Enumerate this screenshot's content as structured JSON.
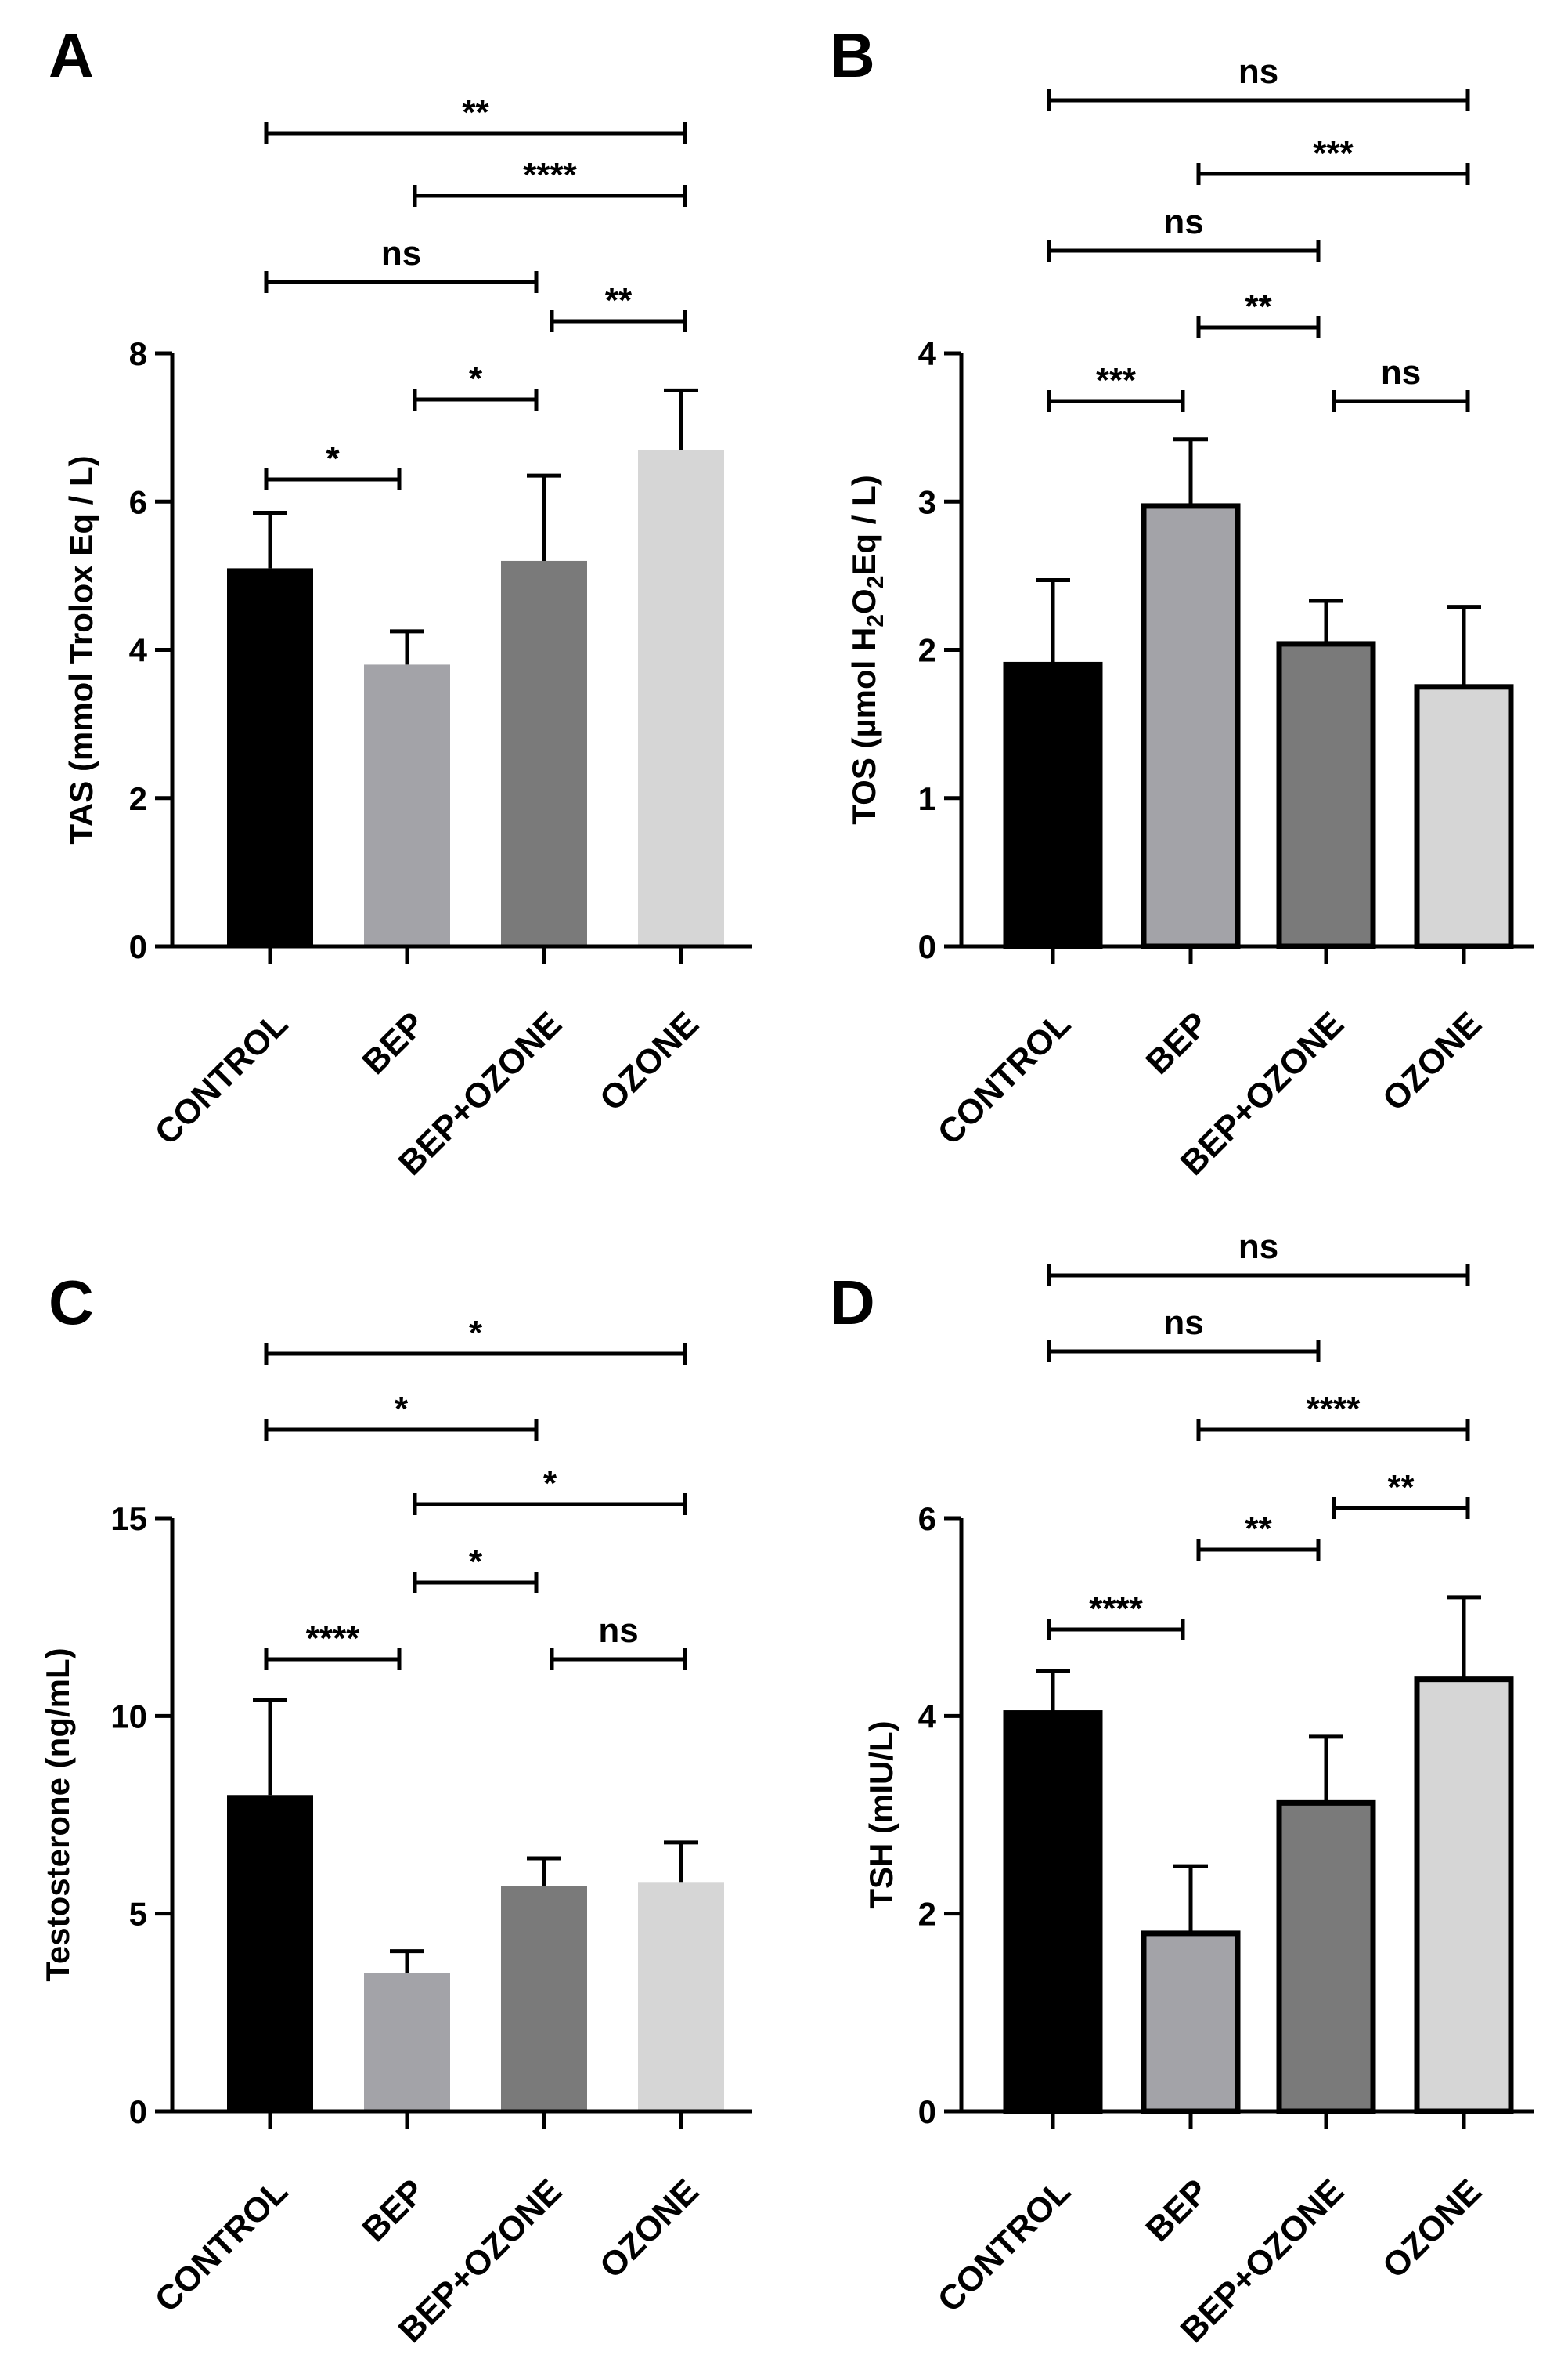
{
  "chart_data": [
    {
      "panel": "A",
      "type": "bar",
      "categories": [
        "CONTROL",
        "BEP",
        "BEP+OZONE",
        "OZONE"
      ],
      "values": [
        5.1,
        3.8,
        5.2,
        6.7
      ],
      "errors": [
        0.75,
        0.45,
        1.15,
        0.8
      ],
      "ylabel": "TAS (mmol Trolox Eq / L)",
      "ylim": [
        0,
        8
      ],
      "yticks": [
        "0",
        "2",
        "4",
        "6",
        "8"
      ],
      "colors": [
        "#000000",
        "#a3a3a8",
        "#7a7a7a",
        "#d6d6d6"
      ],
      "bar_outline": false,
      "comparisons": [
        {
          "from": 0,
          "to": 1,
          "label": "*"
        },
        {
          "from": 1,
          "to": 2,
          "label": "*"
        },
        {
          "from": 2,
          "to": 3,
          "label": "**"
        },
        {
          "from": 0,
          "to": 2,
          "label": "ns"
        },
        {
          "from": 1,
          "to": 3,
          "label": "****"
        },
        {
          "from": 0,
          "to": 3,
          "label": "**"
        }
      ]
    },
    {
      "panel": "B",
      "type": "bar",
      "categories": [
        "CONTROL",
        "BEP",
        "BEP+OZONE",
        "OZONE"
      ],
      "values": [
        1.9,
        2.97,
        2.04,
        1.75
      ],
      "errors": [
        0.57,
        0.45,
        0.29,
        0.54
      ],
      "ylabel": "TOS (µmol H2O2Eq / L)",
      "ylim": [
        0,
        4
      ],
      "yticks": [
        "0",
        "1",
        "2",
        "3",
        "4"
      ],
      "colors": [
        "#000000",
        "#a3a3a8",
        "#7a7a7a",
        "#d6d6d6"
      ],
      "bar_outline": true,
      "comparisons": [
        {
          "from": 0,
          "to": 1,
          "label": "***"
        },
        {
          "from": 2,
          "to": 3,
          "label": "ns"
        },
        {
          "from": 1,
          "to": 2,
          "label": "**"
        },
        {
          "from": 0,
          "to": 2,
          "label": "ns"
        },
        {
          "from": 1,
          "to": 3,
          "label": "***"
        },
        {
          "from": 0,
          "to": 3,
          "label": "ns"
        }
      ]
    },
    {
      "panel": "C",
      "type": "bar",
      "categories": [
        "CONTROL",
        "BEP",
        "BEP+OZONE",
        "OZONE"
      ],
      "values": [
        8.0,
        3.5,
        5.7,
        5.8
      ],
      "errors": [
        2.4,
        0.55,
        0.7,
        1.0
      ],
      "ylabel": "Testosterone (ng/mL)",
      "ylim": [
        0,
        15
      ],
      "yticks": [
        "0",
        "5",
        "10",
        "15"
      ],
      "colors": [
        "#000000",
        "#a3a3a8",
        "#7a7a7a",
        "#d6d6d6"
      ],
      "bar_outline": false,
      "comparisons": [
        {
          "from": 0,
          "to": 1,
          "label": "****"
        },
        {
          "from": 2,
          "to": 3,
          "label": "ns"
        },
        {
          "from": 1,
          "to": 2,
          "label": "*"
        },
        {
          "from": 1,
          "to": 3,
          "label": "*"
        },
        {
          "from": 0,
          "to": 2,
          "label": "*"
        },
        {
          "from": 0,
          "to": 3,
          "label": "*"
        }
      ]
    },
    {
      "panel": "D",
      "type": "bar",
      "categories": [
        "CONTROL",
        "BEP",
        "BEP+OZONE",
        "OZONE"
      ],
      "values": [
        4.03,
        1.8,
        3.12,
        4.37
      ],
      "errors": [
        0.42,
        0.68,
        0.67,
        0.83
      ],
      "ylabel": "TSH (mIU/L)",
      "ylim": [
        0,
        6
      ],
      "yticks": [
        "0",
        "2",
        "4",
        "6"
      ],
      "colors": [
        "#000000",
        "#a3a3a8",
        "#7a7a7a",
        "#d6d6d6"
      ],
      "bar_outline": true,
      "comparisons": [
        {
          "from": 0,
          "to": 1,
          "label": "****"
        },
        {
          "from": 1,
          "to": 2,
          "label": "**"
        },
        {
          "from": 2,
          "to": 3,
          "label": "**"
        },
        {
          "from": 1,
          "to": 3,
          "label": "****"
        },
        {
          "from": 0,
          "to": 2,
          "label": "ns"
        },
        {
          "from": 0,
          "to": 3,
          "label": "ns"
        }
      ]
    }
  ]
}
